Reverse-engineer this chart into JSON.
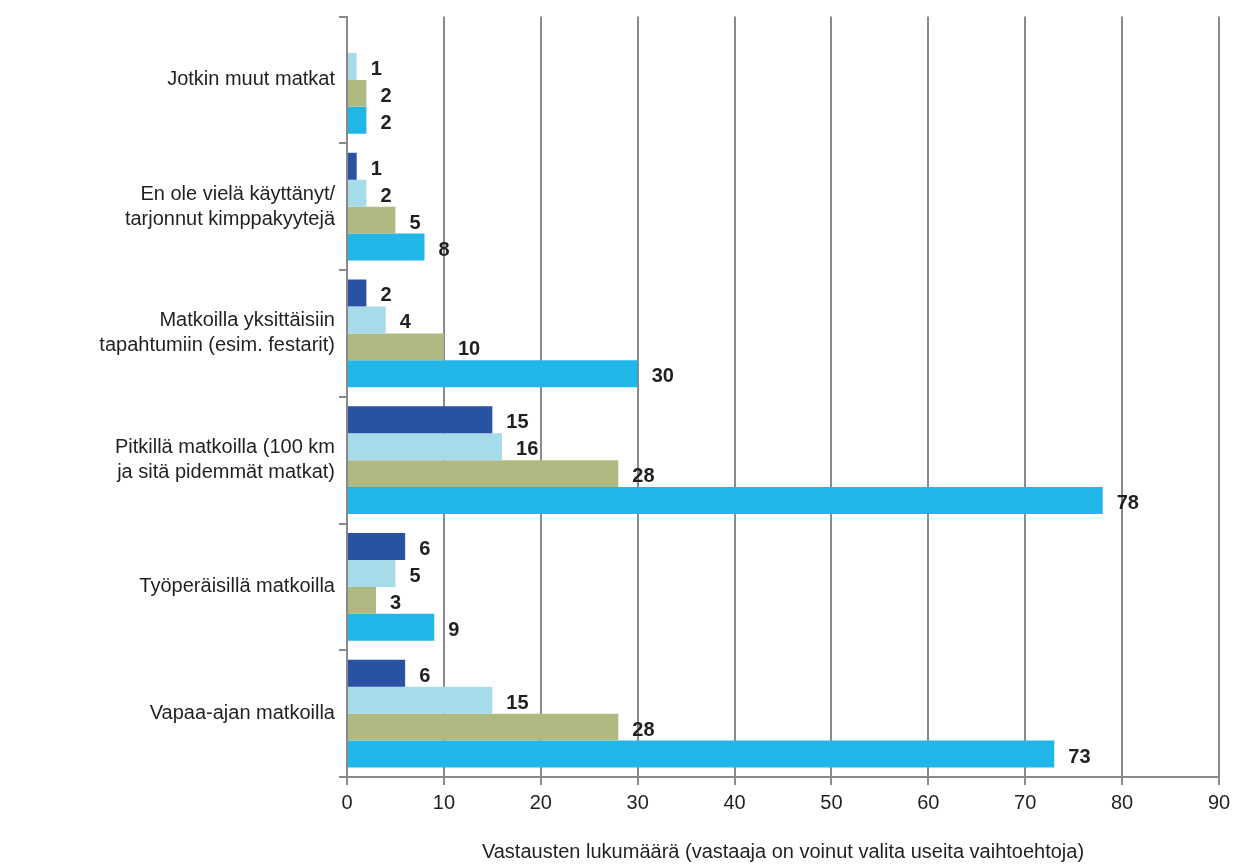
{
  "chart_data": {
    "type": "bar",
    "orientation": "horizontal",
    "xlabel": "Vastausten lukumäärä (vastaaja on voinut valita useita vaihtoehtoja)",
    "categories": [
      "Jotkin muut matkat",
      "En ole vielä käyttänyt/\ntarjonnut kimppakyytejä",
      "Matkoilla yksittäisiin\ntapahtumiin (esim. festarit)",
      "Pitkillä matkoilla (100 km\nja sitä pidemmät matkat)",
      "Työperäisillä matkoilla",
      "Vapaa-ajan matkoilla"
    ],
    "series": [
      {
        "color": "#2a52a3",
        "values": [
          null,
          1,
          2,
          15,
          6,
          6
        ]
      },
      {
        "color": "#a6dcea",
        "values": [
          1,
          2,
          4,
          16,
          5,
          15
        ]
      },
      {
        "color": "#afb982",
        "values": [
          2,
          5,
          10,
          28,
          3,
          28
        ]
      },
      {
        "color": "#21b6e8",
        "values": [
          2,
          8,
          30,
          78,
          9,
          73
        ]
      }
    ],
    "xlim": [
      0,
      90
    ],
    "xticks": [
      0,
      10,
      20,
      30,
      40,
      50,
      60,
      70,
      80,
      90
    ],
    "grid": "x",
    "legend": false,
    "data_labels": true
  }
}
